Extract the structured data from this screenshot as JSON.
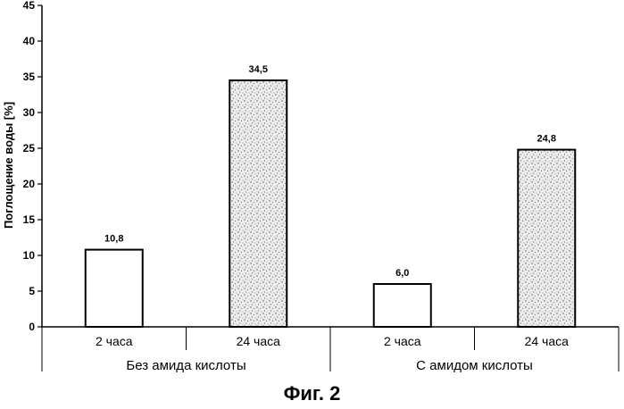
{
  "figure": {
    "caption": "Фиг. 2"
  },
  "chart_data": {
    "type": "bar",
    "ylabel": "Поглощение воды [%]",
    "ylim": [
      0,
      45
    ],
    "yticks": [
      0,
      5,
      10,
      15,
      20,
      25,
      30,
      35,
      40,
      45
    ],
    "grid": false,
    "groups": [
      {
        "label": "Без амида кислоты",
        "categories": [
          "2 часа",
          "24 часа"
        ]
      },
      {
        "label": "С амидом кислоты",
        "categories": [
          "2 часа",
          "24 часа"
        ]
      }
    ],
    "bars": [
      {
        "group": "Без амида кислоты",
        "category": "2 часа",
        "value": 10.8,
        "label": "10,8",
        "fill": "plain"
      },
      {
        "group": "Без амида кислоты",
        "category": "24 часа",
        "value": 34.5,
        "label": "34,5",
        "fill": "stippled"
      },
      {
        "group": "С амидом кислоты",
        "category": "2 часа",
        "value": 6.0,
        "label": "6,0",
        "fill": "plain"
      },
      {
        "group": "С амидом кислоты",
        "category": "24 часа",
        "value": 24.8,
        "label": "24,8",
        "fill": "stippled"
      }
    ],
    "colors": {
      "plain_fill": "#ffffff",
      "stipple_base": "#ececec",
      "stipple_dots": "#555555",
      "outline": "#000000"
    }
  }
}
